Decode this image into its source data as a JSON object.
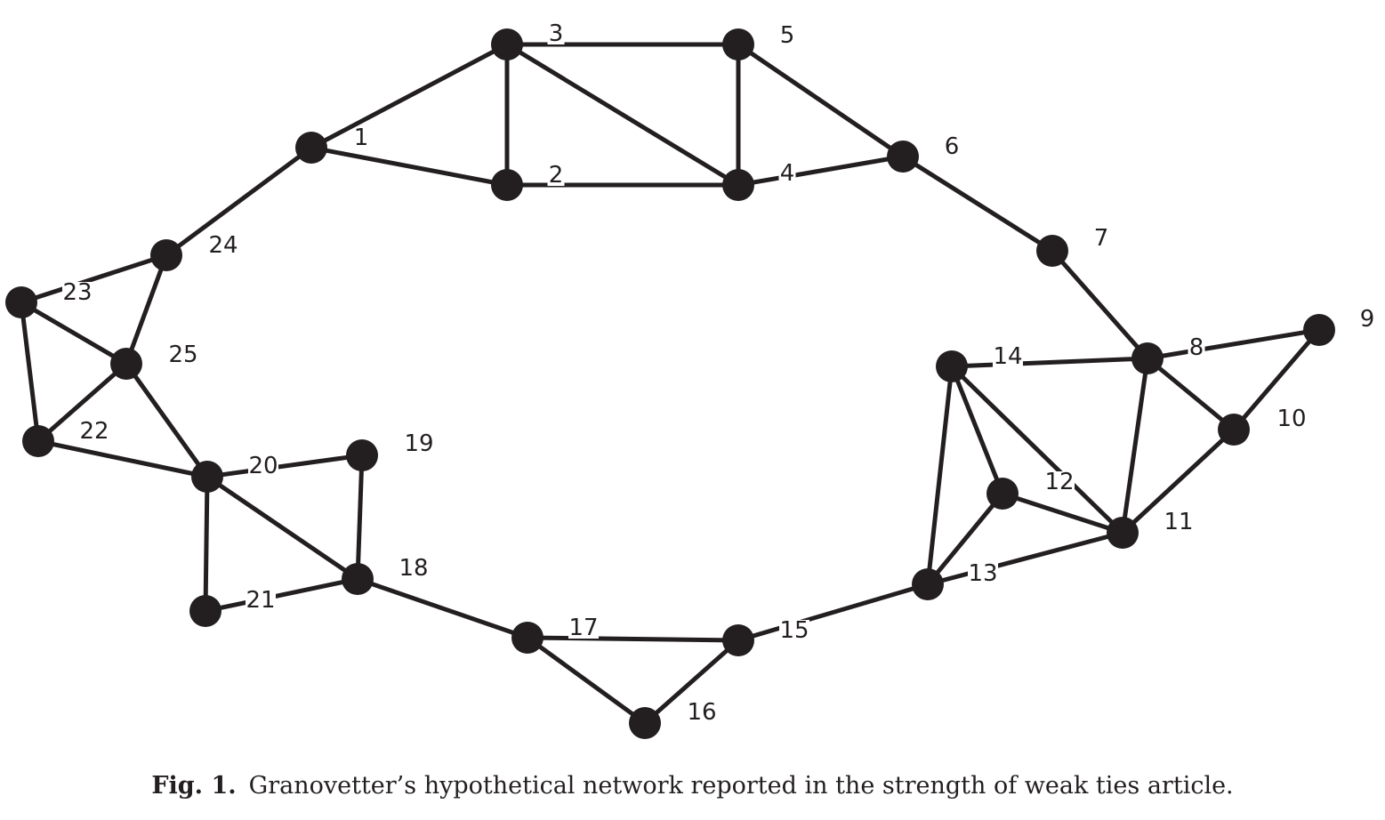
{
  "figure": {
    "caption_label": "Fig. 1.",
    "caption_text": "Granovetter’s hypothetical network reported in the strength of weak ties article."
  },
  "graph": {
    "node_color": "#231f20",
    "edge_color": "#231f20",
    "nodes": [
      "1",
      "2",
      "3",
      "4",
      "5",
      "6",
      "7",
      "8",
      "9",
      "10",
      "11",
      "12",
      "13",
      "14",
      "15",
      "16",
      "17",
      "18",
      "19",
      "20",
      "21",
      "22",
      "23",
      "24",
      "25"
    ],
    "edges": [
      [
        "1",
        "3"
      ],
      [
        "1",
        "2"
      ],
      [
        "1",
        "24"
      ],
      [
        "3",
        "5"
      ],
      [
        "3",
        "2"
      ],
      [
        "3",
        "4"
      ],
      [
        "2",
        "4"
      ],
      [
        "5",
        "4"
      ],
      [
        "5",
        "6"
      ],
      [
        "4",
        "6"
      ],
      [
        "6",
        "7"
      ],
      [
        "7",
        "8"
      ],
      [
        "8",
        "9"
      ],
      [
        "8",
        "10"
      ],
      [
        "8",
        "14"
      ],
      [
        "8",
        "11"
      ],
      [
        "9",
        "10"
      ],
      [
        "10",
        "11"
      ],
      [
        "14",
        "12"
      ],
      [
        "14",
        "11"
      ],
      [
        "14",
        "13"
      ],
      [
        "12",
        "11"
      ],
      [
        "12",
        "13"
      ],
      [
        "11",
        "13"
      ],
      [
        "13",
        "15"
      ],
      [
        "15",
        "17"
      ],
      [
        "15",
        "16"
      ],
      [
        "16",
        "17"
      ],
      [
        "17",
        "18"
      ],
      [
        "18",
        "19"
      ],
      [
        "18",
        "20"
      ],
      [
        "18",
        "21"
      ],
      [
        "20",
        "19"
      ],
      [
        "20",
        "21"
      ],
      [
        "20",
        "22"
      ],
      [
        "20",
        "25"
      ],
      [
        "22",
        "25"
      ],
      [
        "22",
        "23"
      ],
      [
        "23",
        "25"
      ],
      [
        "23",
        "24"
      ],
      [
        "24",
        "25"
      ]
    ]
  }
}
